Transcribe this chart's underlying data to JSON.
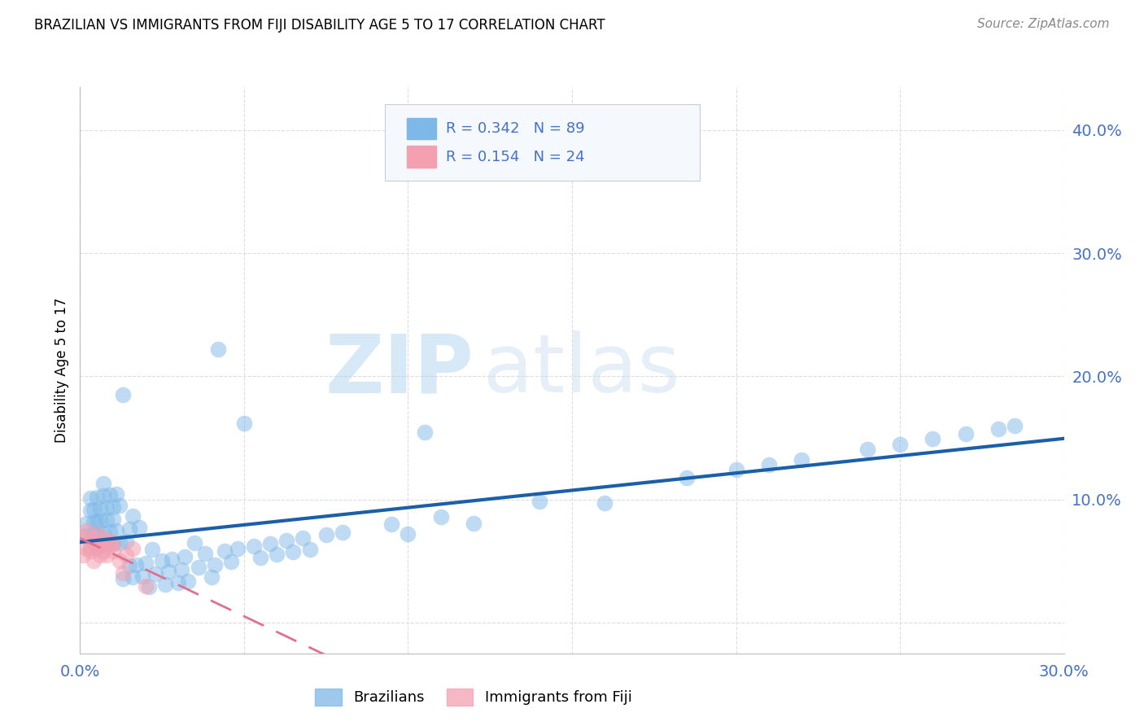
{
  "title": "BRAZILIAN VS IMMIGRANTS FROM FIJI DISABILITY AGE 5 TO 17 CORRELATION CHART",
  "source": "Source: ZipAtlas.com",
  "ylabel": "Disability Age 5 to 17",
  "xlim": [
    0.0,
    0.3
  ],
  "ylim": [
    -0.025,
    0.435
  ],
  "x_ticks": [
    0.0,
    0.05,
    0.1,
    0.15,
    0.2,
    0.25,
    0.3
  ],
  "x_tick_labels": [
    "0.0%",
    "",
    "",
    "",
    "",
    "",
    "30.0%"
  ],
  "y_ticks": [
    0.0,
    0.1,
    0.2,
    0.3,
    0.4
  ],
  "y_tick_labels": [
    "",
    "10.0%",
    "20.0%",
    "30.0%",
    "40.0%"
  ],
  "brazilian_color": "#7EB8E8",
  "fiji_color": "#F4A0B0",
  "trendline_blue": "#1A5FA8",
  "trendline_pink": "#E07090",
  "R_brazilian": 0.342,
  "N_brazilian": 89,
  "R_fiji": 0.154,
  "N_fiji": 24,
  "watermark_zip": "ZIP",
  "watermark_atlas": "atlas",
  "background_color": "#FFFFFF",
  "grid_color": "#DDDDDD",
  "tick_color": "#4472C4",
  "stats_text_color": "#4472C4",
  "source_color": "#888888"
}
